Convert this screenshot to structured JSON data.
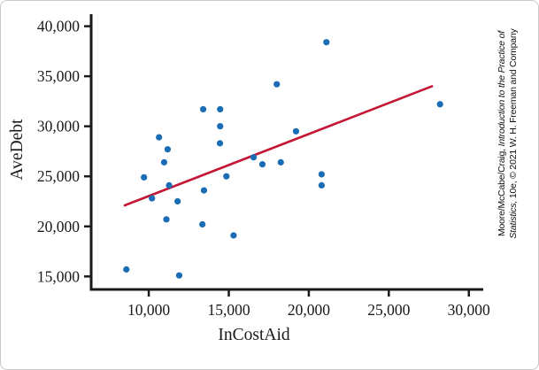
{
  "chart_data": {
    "type": "scatter",
    "title": "",
    "xlabel": "InCostAid",
    "ylabel": "AveDebt",
    "xlim": [
      6400,
      30900
    ],
    "ylim": [
      13700,
      41200
    ],
    "x_ticks": [
      10000,
      15000,
      20000,
      25000,
      30000
    ],
    "y_ticks": [
      15000,
      20000,
      25000,
      30000,
      35000,
      40000
    ],
    "grid": false,
    "legend": "none",
    "point_color": "#1a6cb5",
    "line_color": "#c41736",
    "axis_color": "#1a1a1a",
    "points": [
      [
        8600,
        15700
      ],
      [
        11900,
        15100
      ],
      [
        9700,
        24900
      ],
      [
        10640,
        28900
      ],
      [
        11180,
        27700
      ],
      [
        10960,
        26400
      ],
      [
        11270,
        24100
      ],
      [
        10200,
        22800
      ],
      [
        11800,
        22500
      ],
      [
        11100,
        20700
      ],
      [
        13350,
        20200
      ],
      [
        15300,
        19100
      ],
      [
        13400,
        31700
      ],
      [
        14460,
        31700
      ],
      [
        14460,
        30000
      ],
      [
        14450,
        28300
      ],
      [
        14850,
        25000
      ],
      [
        13450,
        23600
      ],
      [
        16550,
        26900
      ],
      [
        17100,
        26200
      ],
      [
        18250,
        26400
      ],
      [
        18000,
        34200
      ],
      [
        19200,
        29500
      ],
      [
        21100,
        38400
      ],
      [
        20800,
        25200
      ],
      [
        20800,
        24100
      ],
      [
        28200,
        32200
      ]
    ],
    "fit_line": {
      "x1": 8500,
      "y1": 22100,
      "x2": 27700,
      "y2": 34000
    }
  },
  "caption": {
    "line1_prefix": "Moore/McCabe/Craig, ",
    "line1_italic": "Introduction to the Practice of",
    "line2_italic": "Statistics,",
    "line2_suffix": " 10e, © 2021 W. H. Freeman and Company"
  }
}
